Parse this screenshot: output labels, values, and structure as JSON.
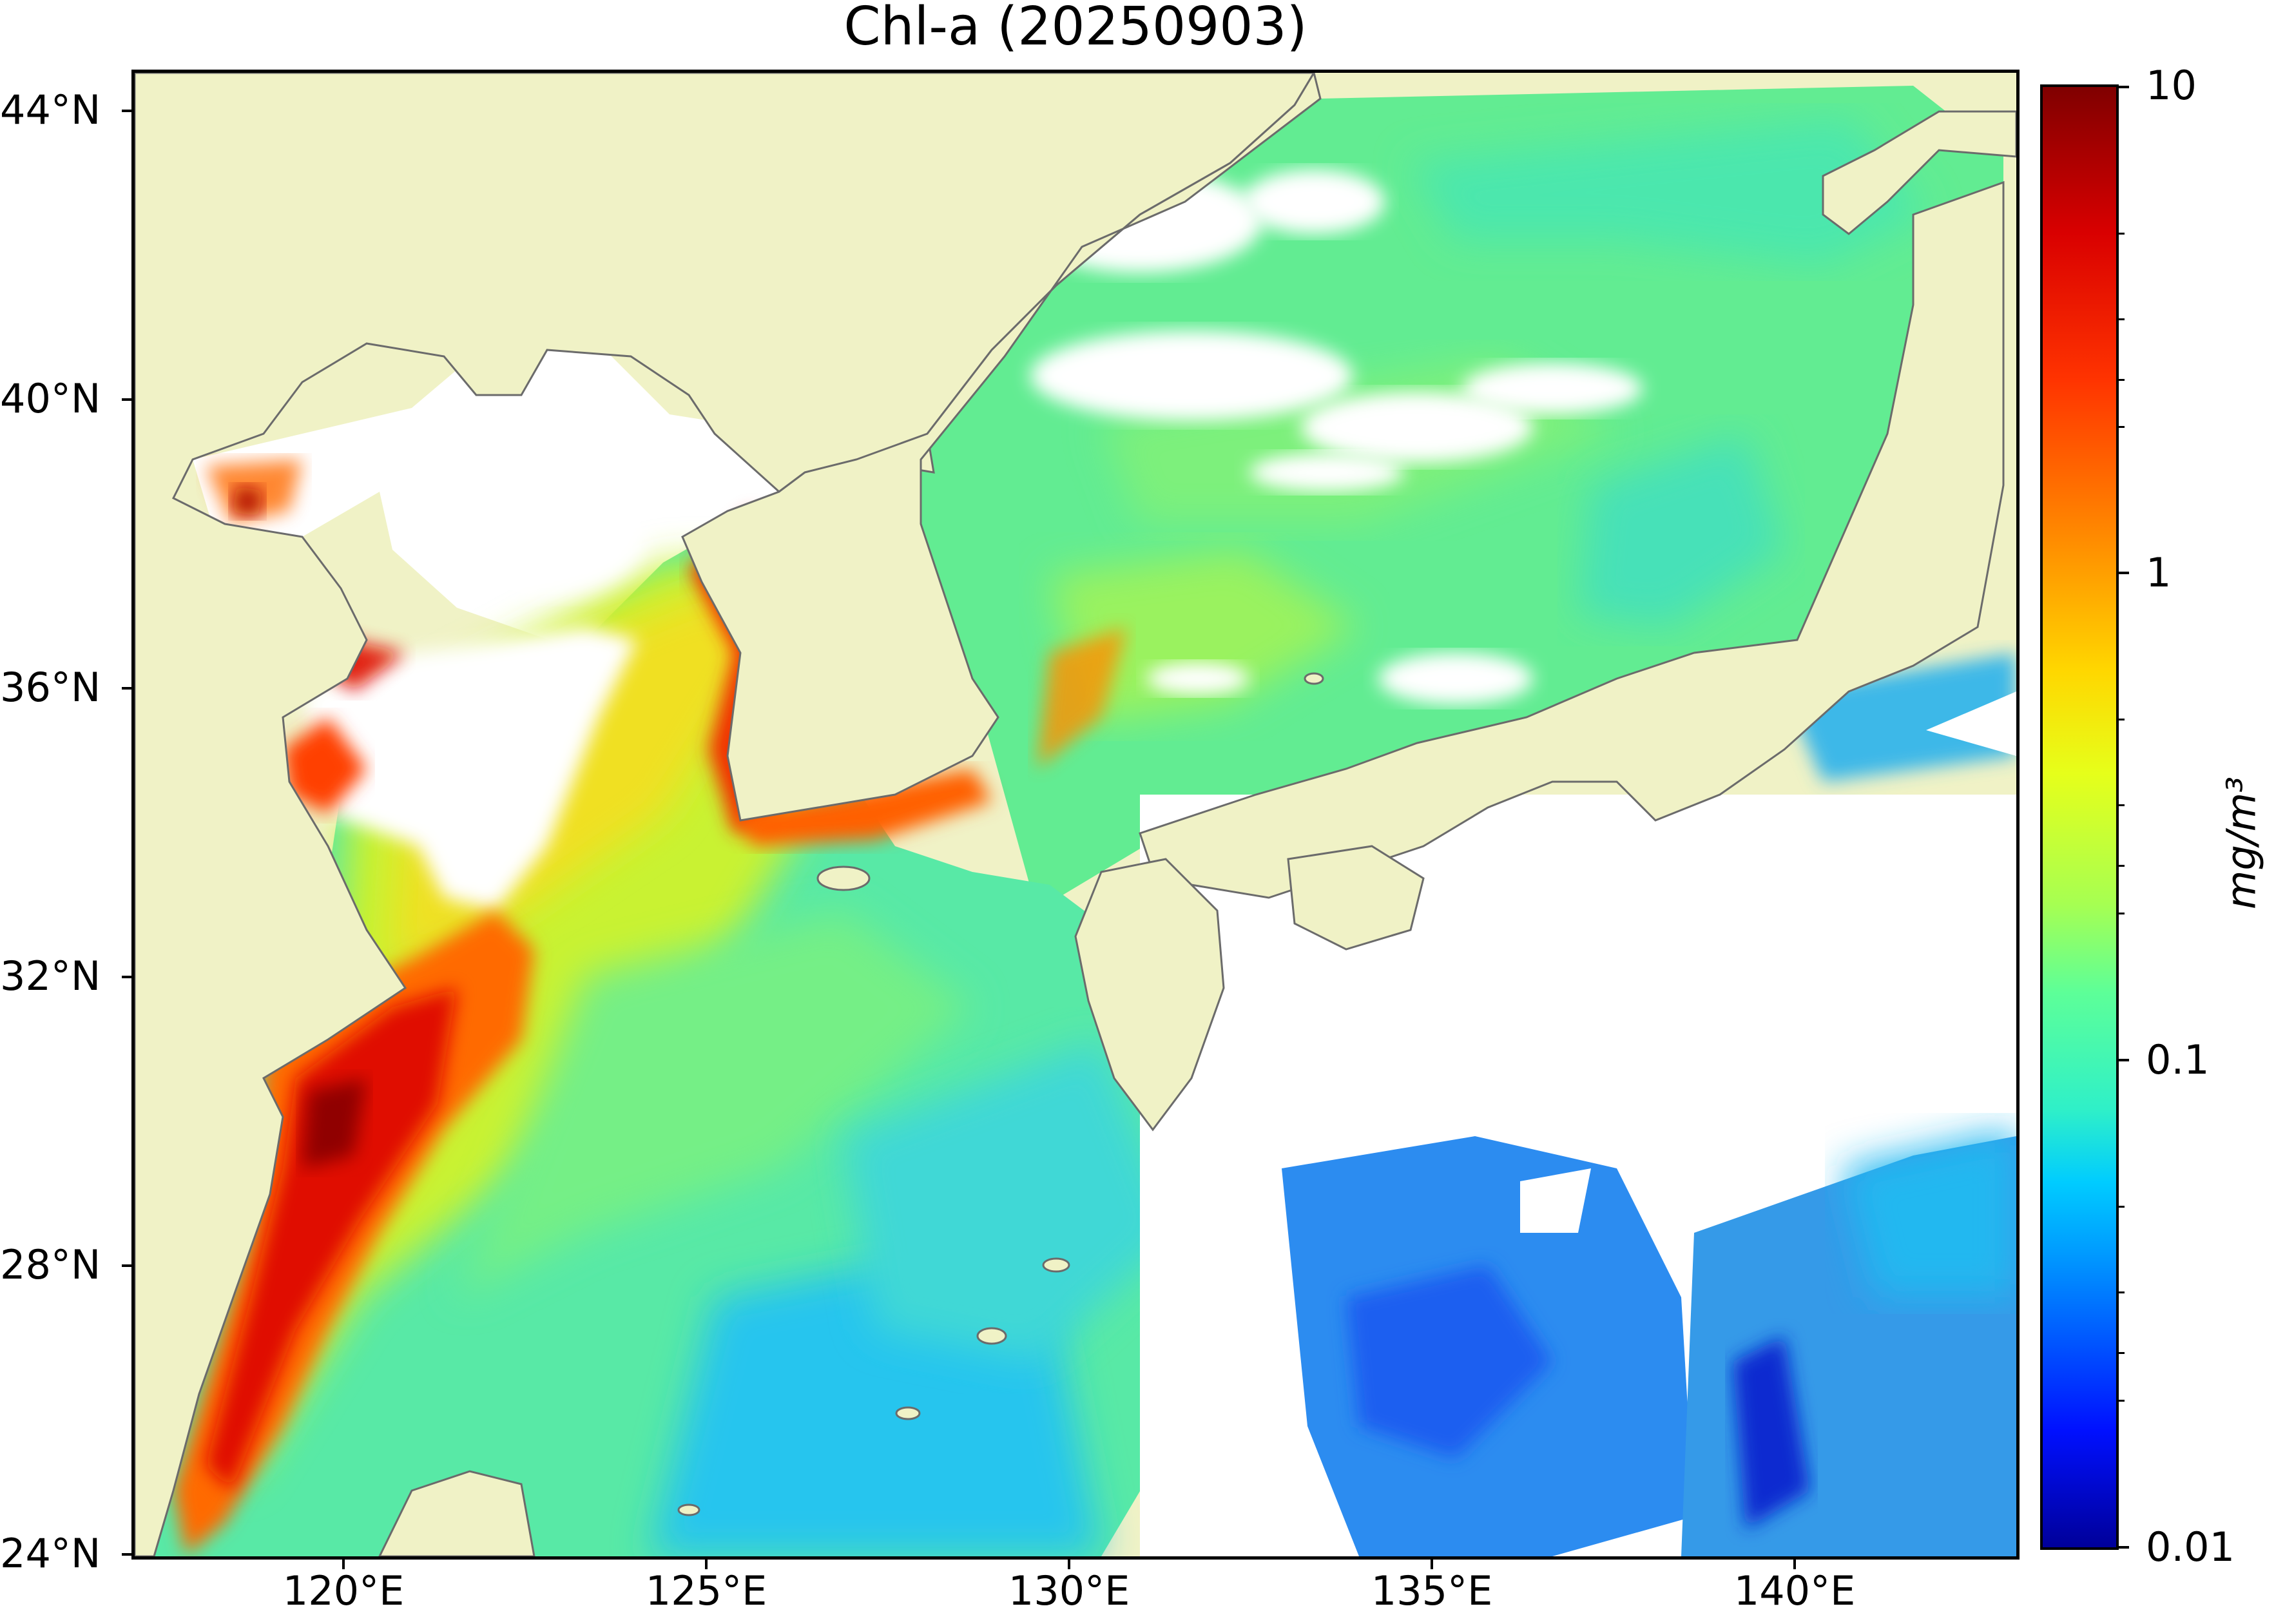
{
  "title": "Chl-a (20250903)",
  "map": {
    "lon_range": [
      117,
      143
    ],
    "lat_range": [
      24,
      44.5
    ],
    "lat_ticks": [
      {
        "value": 44,
        "label": "44°N"
      },
      {
        "value": 40,
        "label": "40°N"
      },
      {
        "value": 36,
        "label": "36°N"
      },
      {
        "value": 32,
        "label": "32°N"
      },
      {
        "value": 28,
        "label": "28°N"
      },
      {
        "value": 24,
        "label": "24°N"
      }
    ],
    "lon_ticks": [
      {
        "value": 120,
        "label": "120°E"
      },
      {
        "value": 125,
        "label": "125°E"
      },
      {
        "value": 130,
        "label": "130°E"
      },
      {
        "value": 135,
        "label": "135°E"
      },
      {
        "value": 140,
        "label": "140°E"
      }
    ],
    "colors": {
      "land": "#f0f2c6",
      "coastline": "#6b6b6b",
      "no_data": "#ffffff"
    }
  },
  "colorbar": {
    "label": "mg/m³",
    "scale": "log",
    "range": [
      0.01,
      10
    ],
    "ticks": [
      {
        "value": 10,
        "label": "10"
      },
      {
        "value": 1,
        "label": "1"
      },
      {
        "value": 0.1,
        "label": "0.1"
      },
      {
        "value": 0.01,
        "label": "0.01"
      }
    ],
    "colormap": "jet"
  }
}
